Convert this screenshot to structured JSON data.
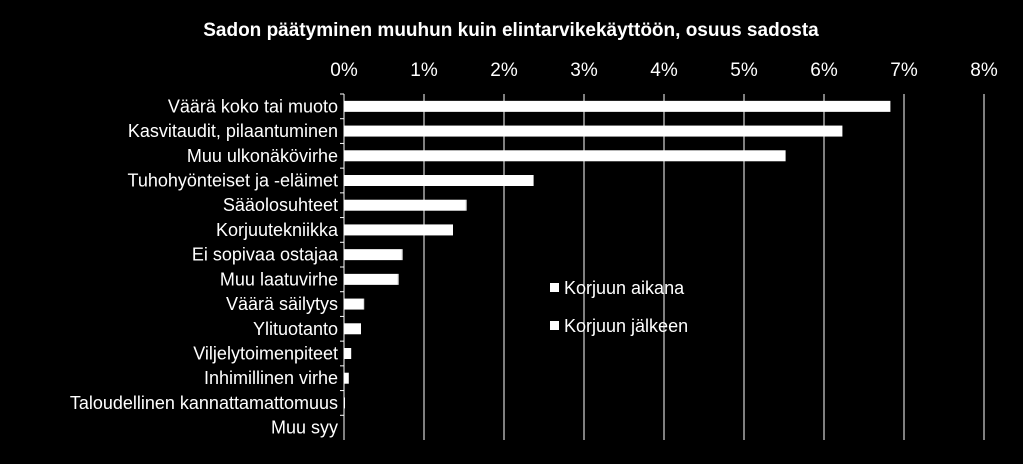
{
  "chart_data": {
    "type": "bar",
    "orientation": "horizontal",
    "stacked": true,
    "title": "Sadon päätyminen muuhun kuin elintarvikekäyttöön, osuus sadosta",
    "xlabel": "",
    "ylabel": "",
    "xlim": [
      0,
      0.08
    ],
    "x_ticks": [
      "0%",
      "1%",
      "2%",
      "3%",
      "4%",
      "5%",
      "6%",
      "7%",
      "8%"
    ],
    "x_tick_values": [
      0,
      0.01,
      0.02,
      0.03,
      0.04,
      0.05,
      0.06,
      0.07,
      0.08
    ],
    "grid": true,
    "legend_position": "center-right",
    "categories": [
      "Väärä koko tai muoto",
      "Kasvitaudit, pilaantuminen",
      "Muu ulkonäkövirhe",
      "Tuhohyönteiset ja -eläimet",
      "Sääolosuhteet",
      "Korjuutekniikka",
      "Ei sopivaa ostajaa",
      "Muu laatuvirhe",
      "Väärä säilytys",
      "Ylituotanto",
      "Viljelytoimenpiteet",
      "Inhimillinen virhe",
      "Taloudellinen kannattamattomuus",
      "Muu syy"
    ],
    "series": [
      {
        "name": "Korjuun aikana",
        "color": "#ffffff",
        "values": [
          0.068,
          0.062,
          0.055,
          0.0235,
          0.0152,
          0.0135,
          0.0072,
          0.0067,
          0.0024,
          0.002,
          0.0009,
          0.0006,
          0.0001,
          0.0
        ]
      },
      {
        "name": "Korjuun jälkeen",
        "color": "#ffffff",
        "values": [
          0.0003,
          0.0003,
          0.0002,
          0.0002,
          0.0001,
          0.0001,
          0.0001,
          0.0001,
          0.0001,
          0.0001,
          0.0,
          0.0,
          0.0,
          0.0
        ]
      }
    ],
    "colors": {
      "background": "#000000",
      "foreground": "#ffffff"
    }
  }
}
